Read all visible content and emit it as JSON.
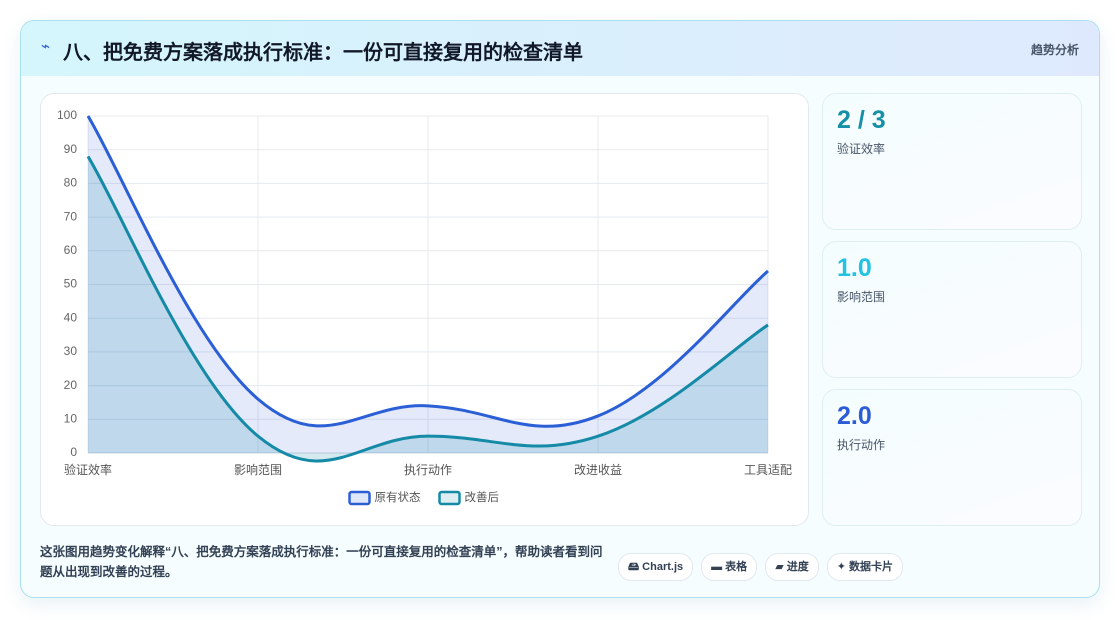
{
  "header": {
    "icon": "⌁",
    "title": "八、把免费方案落成执行标准：一份可直接复用的检查清单",
    "tag": "趋势分析"
  },
  "chart_data": {
    "type": "line",
    "categories": [
      "验证效率",
      "影响范围",
      "执行动作",
      "改进收益",
      "工具适配"
    ],
    "series": [
      {
        "name": "原有状态",
        "color": "#2b5fd6",
        "values": [
          100,
          16,
          14,
          11,
          54
        ]
      },
      {
        "name": "改善后",
        "color": "#148aa6",
        "values": [
          88,
          5,
          5,
          5,
          38
        ]
      }
    ],
    "ylim": [
      0,
      100
    ],
    "yticks": [
      0,
      10,
      20,
      30,
      40,
      50,
      60,
      70,
      80,
      90,
      100
    ],
    "grid": true,
    "fill": true,
    "legend": "bottom"
  },
  "stats": [
    {
      "value": "2 / 3",
      "label": "验证效率",
      "color": "#1590a6"
    },
    {
      "value": "1.0",
      "label": "影响范围",
      "color": "#22c3e0"
    },
    {
      "value": "2.0",
      "label": "执行动作",
      "color": "#2b5bd6"
    }
  ],
  "caption": "这张图用趋势变化解释“八、把免费方案落成执行标准：一份可直接复用的检查清单”，帮助读者看到问题从出现到改善的过程。",
  "badges": [
    "🖴 Chart.js",
    "▬ 表格",
    "▰ 进度",
    "✦ 数据卡片"
  ]
}
